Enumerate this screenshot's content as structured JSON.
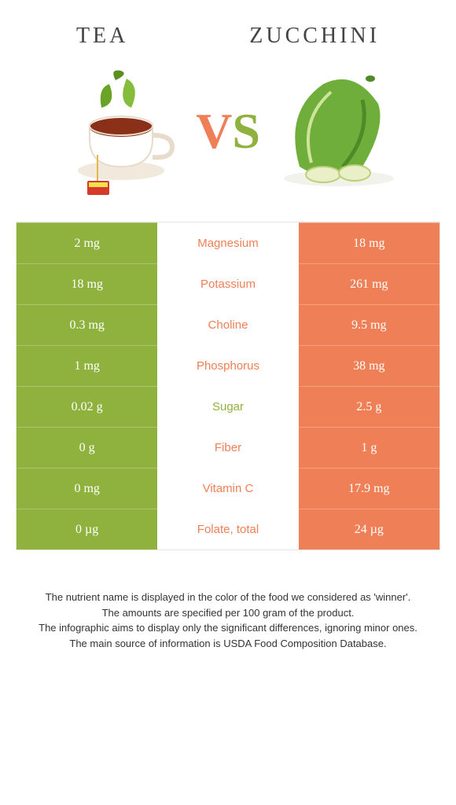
{
  "colors": {
    "tea_green": "#8fb23f",
    "zuc_orange": "#ef7f56",
    "midbg": "#ffffff"
  },
  "header": {
    "left": "Tea",
    "right": "Zucchini",
    "vs_v": "V",
    "vs_s": "S"
  },
  "rows": [
    {
      "left": "2 mg",
      "mid": "Magnesium",
      "right": "18 mg",
      "winner": "zuc"
    },
    {
      "left": "18 mg",
      "mid": "Potassium",
      "right": "261 mg",
      "winner": "zuc"
    },
    {
      "left": "0.3 mg",
      "mid": "Choline",
      "right": "9.5 mg",
      "winner": "zuc"
    },
    {
      "left": "1 mg",
      "mid": "Phosphorus",
      "right": "38 mg",
      "winner": "zuc"
    },
    {
      "left": "0.02 g",
      "mid": "Sugar",
      "right": "2.5 g",
      "winner": "tea"
    },
    {
      "left": "0 g",
      "mid": "Fiber",
      "right": "1 g",
      "winner": "zuc"
    },
    {
      "left": "0 mg",
      "mid": "Vitamin C",
      "right": "17.9 mg",
      "winner": "zuc"
    },
    {
      "left": "0 µg",
      "mid": "Folate, total",
      "right": "24 µg",
      "winner": "zuc"
    }
  ],
  "footer": [
    "The nutrient name is displayed in the color of the food we considered as 'winner'.",
    "The amounts are specified per 100 gram of the product.",
    "The infographic aims to display only the significant differences, ignoring minor ones.",
    "The main source of information is USDA Food Composition Database."
  ]
}
